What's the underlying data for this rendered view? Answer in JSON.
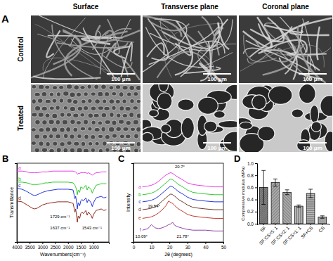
{
  "panel_a": {
    "label": "A",
    "columns": [
      "Surface",
      "Transverse plane",
      "Coronal plane"
    ],
    "rows": [
      "Control",
      "Treated"
    ],
    "scale_bar": "100 μm"
  },
  "chart_data": [
    {
      "type": "line",
      "title": "B",
      "x_label": "Wavenumbers(cm⁻¹)",
      "y_label": "Transmittance",
      "x": [
        4000,
        3800,
        3600,
        3500,
        3400,
        3300,
        3200,
        3000,
        2900,
        2800,
        2600,
        2400,
        2200,
        2000,
        1800,
        1729,
        1700,
        1650,
        1637,
        1600,
        1543,
        1500,
        1450,
        1400,
        1300,
        1250,
        1200,
        1100,
        1050,
        1000,
        900,
        800,
        700,
        600,
        500
      ],
      "xlim": [
        4000,
        400
      ],
      "xticks": [
        4000,
        3500,
        3000,
        2500,
        2000,
        1500,
        1000
      ],
      "ylim": [
        0,
        100
      ],
      "tick_labels": "x",
      "series": [
        {
          "name": "a",
          "color": "#e83ee8",
          "values": [
            90,
            90,
            89,
            88,
            88,
            88,
            88,
            89,
            89,
            89,
            90,
            90,
            90,
            90,
            90,
            89,
            89,
            87,
            86,
            87,
            87,
            88,
            88,
            88,
            88,
            87,
            88,
            86,
            85,
            86,
            88,
            88,
            89,
            89,
            89
          ]
        },
        {
          "name": "b",
          "color": "#2ec82e",
          "values": [
            76,
            76,
            75,
            74,
            73,
            73,
            73,
            74,
            75,
            75,
            76,
            76,
            76,
            76,
            75,
            72,
            70,
            64,
            60,
            66,
            63,
            70,
            69,
            68,
            72,
            66,
            70,
            67,
            62,
            66,
            72,
            73,
            74,
            74,
            74
          ]
        },
        {
          "name": "c",
          "color": "#2233dd",
          "values": [
            68,
            67,
            64,
            62,
            60,
            59,
            60,
            63,
            64,
            65,
            66,
            67,
            67,
            67,
            66,
            55,
            58,
            48,
            42,
            50,
            46,
            52,
            54,
            52,
            56,
            50,
            54,
            50,
            45,
            50,
            56,
            57,
            58,
            56,
            57
          ]
        },
        {
          "name": "d",
          "color": "#8b2a1a",
          "values": [
            52,
            51,
            47,
            45,
            43,
            42,
            43,
            47,
            48,
            49,
            50,
            51,
            51,
            51,
            49,
            38,
            42,
            30,
            25,
            33,
            30,
            36,
            38,
            36,
            40,
            34,
            38,
            34,
            30,
            35,
            40,
            41,
            42,
            40,
            41
          ]
        }
      ],
      "annotations": [
        {
          "text": "1729 cm⁻¹",
          "x": 2700,
          "y": 30
        },
        {
          "text": "1637 cm⁻¹",
          "x": 2700,
          "y": 16
        },
        {
          "text": "1543 cm⁻¹",
          "x": 1450,
          "y": 16
        }
      ]
    },
    {
      "type": "line",
      "title": "C",
      "x_label": "2θ (degrees)",
      "y_label": "Intensity",
      "x": [
        5,
        8,
        10,
        12,
        14,
        16,
        18,
        19.54,
        20.7,
        21.78,
        23,
        25,
        28,
        30,
        33,
        36,
        40,
        45,
        50
      ],
      "xlim": [
        0,
        50
      ],
      "xticks": [
        0,
        10,
        20,
        30,
        40,
        50
      ],
      "ylim": [
        0,
        100
      ],
      "tick_labels": "x",
      "series": [
        {
          "name": "a",
          "color": "#e83ee8",
          "values": [
            70,
            71,
            72,
            74,
            77,
            81,
            85,
            87,
            88,
            87,
            85,
            82,
            78,
            75,
            73,
            72,
            71,
            70,
            70
          ]
        },
        {
          "name": "b",
          "color": "#2ec82e",
          "values": [
            60,
            61,
            62,
            64,
            67,
            71,
            75,
            78,
            80,
            79,
            77,
            73,
            69,
            66,
            63,
            62,
            61,
            60,
            60
          ]
        },
        {
          "name": "c",
          "color": "#2233dd",
          "values": [
            51,
            52,
            53,
            55,
            58,
            62,
            66,
            69,
            71,
            70,
            68,
            64,
            60,
            57,
            54,
            53,
            52,
            51,
            51
          ]
        },
        {
          "name": "d",
          "color": "#6b3a2a",
          "values": [
            41,
            42,
            43,
            45,
            48,
            52,
            56,
            59,
            61,
            60,
            58,
            54,
            50,
            47,
            44,
            43,
            42,
            41,
            41
          ]
        },
        {
          "name": "e",
          "color": "#c0392b",
          "values": [
            30,
            31,
            32,
            34,
            37,
            41,
            46,
            52,
            50,
            49,
            46,
            42,
            38,
            35,
            33,
            32,
            31,
            30,
            30
          ]
        },
        {
          "name": "f",
          "color": "#8e44ad",
          "values": [
            15,
            17,
            22,
            18,
            17,
            18,
            20,
            22,
            23,
            25,
            21,
            19,
            17,
            16,
            15,
            15,
            15,
            14,
            14
          ]
        }
      ],
      "annotations": [
        {
          "text": "20.7°",
          "x": 23,
          "y": 94
        },
        {
          "text": "19.54°",
          "x": 8,
          "y": 44
        },
        {
          "text": "10.09°",
          "x": 1,
          "y": 5
        },
        {
          "text": "21.78°",
          "x": 24,
          "y": 5
        }
      ]
    },
    {
      "type": "bar",
      "title": "D",
      "y_label": "Compressive modulus (MPa)",
      "categories": [
        "SF",
        "SF:CS=5: 1",
        "SF:CS=2: 1",
        "SF:CS=1: 1",
        "SF+CS",
        "CS"
      ],
      "values": [
        0.6,
        0.68,
        0.52,
        0.29,
        0.5,
        0.11
      ],
      "errors": [
        0.28,
        0.06,
        0.04,
        0.02,
        0.07,
        0.02
      ],
      "color": "#8c8c8c",
      "ylim": [
        0,
        1
      ],
      "yticks": [
        {
          "value": 0,
          "label": "0.0"
        },
        0.2,
        0.4,
        0.6,
        0.8,
        {
          "value": 1,
          "label": "1.0"
        }
      ]
    }
  ]
}
